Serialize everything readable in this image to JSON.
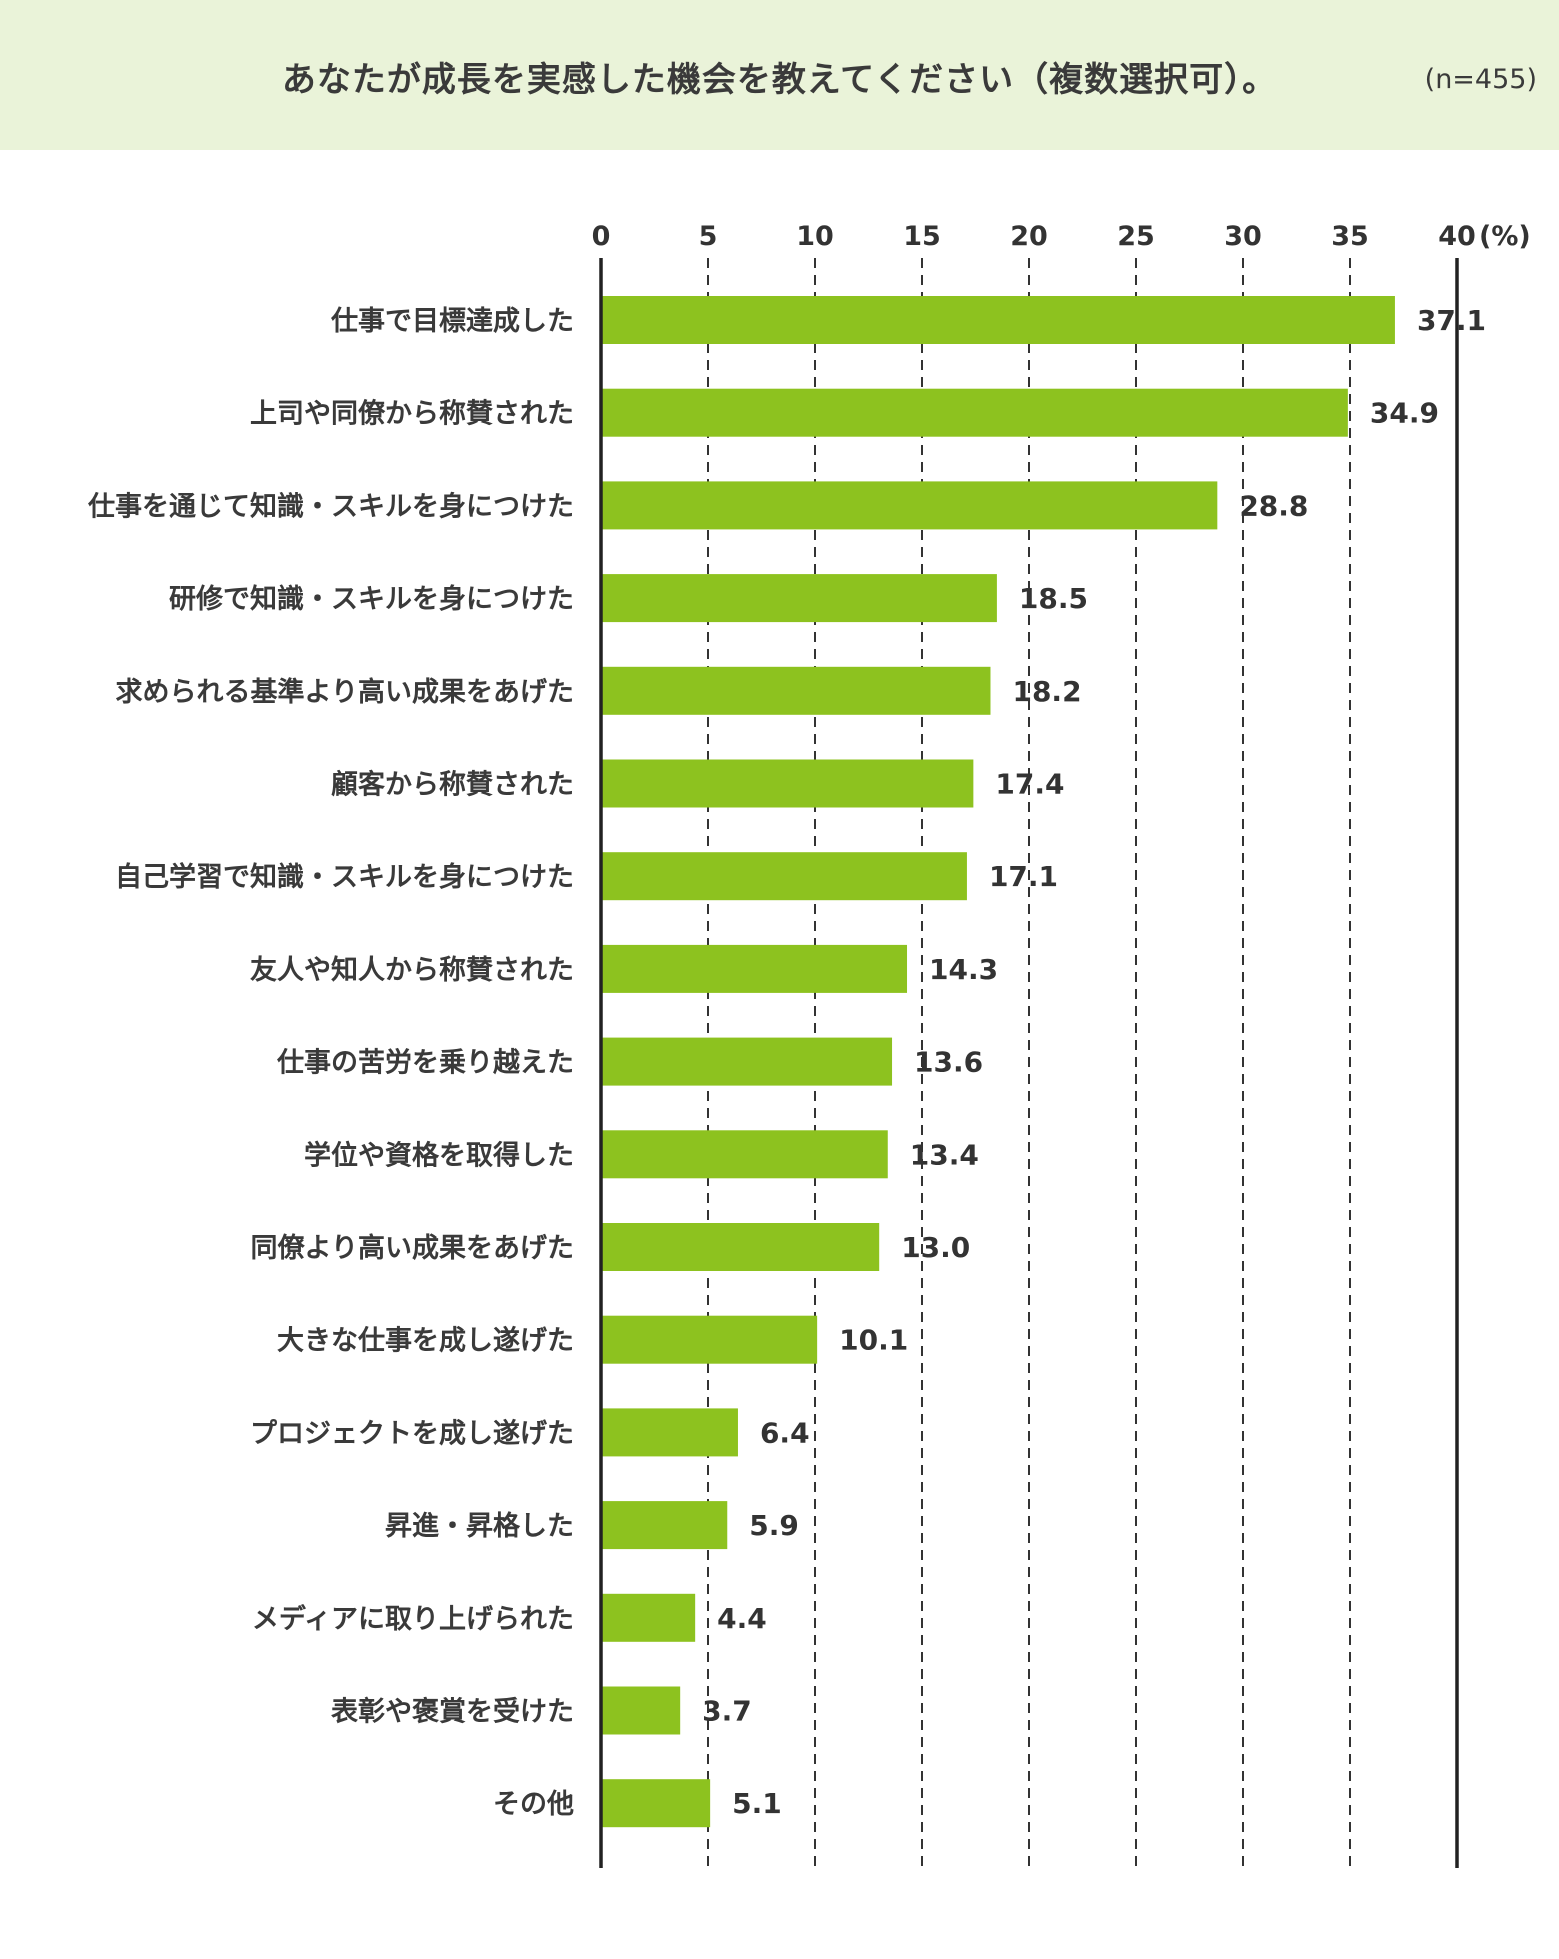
{
  "chart_data": {
    "type": "bar",
    "orientation": "horizontal",
    "title": "あなたが成長を実感した機会を教えてください（複数選択可）。",
    "sample_size": "(n=455)",
    "unit_label": "(%)",
    "xlim": [
      0,
      40
    ],
    "ticks": [
      "0",
      "5",
      "10",
      "15",
      "20",
      "25",
      "30",
      "35",
      "40"
    ],
    "grid": "dashed vertical",
    "categories": [
      "仕事で目標達成した",
      "上司や同僚から称賛された",
      "仕事を通じて知識・スキルを身につけた",
      "研修で知識・スキルを身につけた",
      "求められる基準より高い成果をあげた",
      "顧客から称賛された",
      "自己学習で知識・スキルを身につけた",
      "友人や知人から称賛された",
      "仕事の苦労を乗り越えた",
      "学位や資格を取得した",
      "同僚より高い成果をあげた",
      "大きな仕事を成し遂げた",
      "プロジェクトを成し遂げた",
      "昇進・昇格した",
      "メディアに取り上げられた",
      "表彰や褒賞を受けた",
      "その他"
    ],
    "values": [
      37.1,
      34.9,
      28.8,
      18.5,
      18.2,
      17.4,
      17.1,
      14.3,
      13.6,
      13.4,
      13.0,
      10.1,
      6.4,
      5.9,
      4.4,
      3.7,
      5.1
    ],
    "value_labels": [
      "37.1",
      "34.9",
      "28.8",
      "18.5",
      "18.2",
      "17.4",
      "17.1",
      "14.3",
      "13.6",
      "13.4",
      "13.0",
      "10.1",
      "6.4",
      "5.9",
      "4.4",
      "3.7",
      "5.1"
    ],
    "bar_color": "#8dc21f"
  },
  "colors": {
    "header_bg": "#eaf3d9",
    "bar": "#8dc21f",
    "text": "#333333"
  }
}
